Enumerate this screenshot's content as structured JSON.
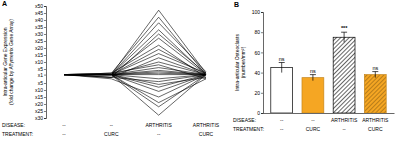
{
  "chart_data": [
    {
      "type": "line",
      "title": "A",
      "y_label": "Intra-articular Gene Expression\n(fold change by Affymetrix Gene Array)",
      "row_labels": [
        "DISEASE:",
        "TREATMENT:"
      ],
      "categories": [
        "--\n--",
        "--\nCURC",
        "ARTHRITIS\n--",
        "ARTHRITIS\nCURC"
      ],
      "color": "#000000",
      "ylim": [
        -30,
        50
      ],
      "yticks": [
        {
          "value": 50,
          "label": "x50"
        },
        {
          "value": 45,
          "label": "x45"
        },
        {
          "value": 40,
          "label": "x40"
        },
        {
          "value": 35,
          "label": "x35"
        },
        {
          "value": 30,
          "label": "x30"
        },
        {
          "value": 25,
          "label": "x25"
        },
        {
          "value": 20,
          "label": "x20"
        },
        {
          "value": 15,
          "label": "x15"
        },
        {
          "value": 10,
          "label": "x10"
        },
        {
          "value": 5,
          "label": "x5"
        },
        {
          "value": 1,
          "label": "x1"
        },
        {
          "value": -5,
          "label": "x5"
        },
        {
          "value": -10,
          "label": "x10"
        },
        {
          "value": -15,
          "label": "x15"
        },
        {
          "value": -20,
          "label": "x20"
        },
        {
          "value": -25,
          "label": "x25"
        },
        {
          "value": -30,
          "label": "x30"
        }
      ],
      "series": [
        {
          "values": [
            1,
            1,
            47,
            2
          ]
        },
        {
          "values": [
            1,
            2,
            42,
            1
          ]
        },
        {
          "values": [
            1,
            1,
            38,
            3
          ]
        },
        {
          "values": [
            1,
            1,
            33,
            1
          ]
        },
        {
          "values": [
            1,
            -1,
            30,
            2
          ]
        },
        {
          "values": [
            1,
            1,
            27,
            1
          ]
        },
        {
          "values": [
            1,
            2,
            22,
            -1
          ]
        },
        {
          "values": [
            1,
            1,
            19,
            1
          ]
        },
        {
          "values": [
            1,
            1,
            16,
            2
          ]
        },
        {
          "values": [
            1,
            -1,
            13,
            1
          ]
        },
        {
          "values": [
            1,
            1,
            10,
            1
          ]
        },
        {
          "values": [
            1,
            2,
            8,
            -2
          ]
        },
        {
          "values": [
            1,
            1,
            6,
            1
          ]
        },
        {
          "values": [
            1,
            1,
            4,
            1
          ]
        },
        {
          "values": [
            1,
            1,
            3,
            1
          ]
        },
        {
          "values": [
            1,
            1,
            2,
            1
          ]
        },
        {
          "values": [
            1,
            1,
            -2,
            1
          ]
        },
        {
          "values": [
            1,
            -1,
            -4,
            1
          ]
        },
        {
          "values": [
            1,
            1,
            -6,
            -1
          ]
        },
        {
          "values": [
            1,
            1,
            -8,
            1
          ]
        },
        {
          "values": [
            1,
            1,
            -11,
            1
          ]
        },
        {
          "values": [
            1,
            -2,
            -15,
            1
          ]
        },
        {
          "values": [
            1,
            1,
            -19,
            -2
          ]
        },
        {
          "values": [
            1,
            1,
            -22,
            1
          ]
        },
        {
          "values": [
            1,
            1,
            -28,
            1
          ]
        },
        {
          "values": [
            1,
            1,
            1,
            1
          ]
        }
      ]
    },
    {
      "type": "bar",
      "title": "B",
      "y_label": "Intra-articular Osteoclasts\n(number/mm²)",
      "row_labels": [
        "DISEASE:",
        "TREATMENT:"
      ],
      "categories": [
        "--\n--",
        "--\nCURC",
        "ARTHRITIS\n--",
        "ARTHRITIS\nCURC"
      ],
      "values": [
        45,
        35,
        75,
        38
      ],
      "errors": [
        5,
        3,
        5,
        3
      ],
      "annotations": [
        "ns",
        "ns",
        "***",
        "ns"
      ],
      "colors": [
        "#ffffff",
        "#f5a623",
        "#ffffff",
        "#f5a623"
      ],
      "ylim": [
        0,
        100
      ],
      "yticks": [
        0,
        20,
        40,
        60,
        80,
        100
      ]
    }
  ]
}
